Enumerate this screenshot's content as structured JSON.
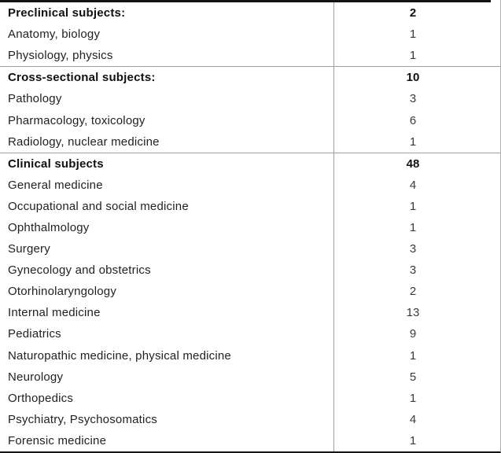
{
  "table": {
    "description": "Distribution of subjects table",
    "column_semantics": [
      "subject",
      "count"
    ],
    "sections": [
      {
        "header": {
          "label": "Preclinical subjects:",
          "count": "2"
        },
        "rows": [
          {
            "subject": "Anatomy, biology",
            "count": "1"
          },
          {
            "subject": "Physiology, physics",
            "count": "1"
          }
        ]
      },
      {
        "header": {
          "label": "Cross-sectional subjects:",
          "count": "10"
        },
        "rows": [
          {
            "subject": "Pathology",
            "count": "3"
          },
          {
            "subject": "Pharmacology, toxicology",
            "count": "6"
          },
          {
            "subject": "Radiology, nuclear medicine",
            "count": "1"
          }
        ]
      },
      {
        "header": {
          "label": "Clinical subjects",
          "count": "48"
        },
        "rows": [
          {
            "subject": "General medicine",
            "count": "4"
          },
          {
            "subject": "Occupational and social medicine",
            "count": "1"
          },
          {
            "subject": "Ophthalmology",
            "count": "1"
          },
          {
            "subject": "Surgery",
            "count": "3"
          },
          {
            "subject": "Gynecology and obstetrics",
            "count": "3"
          },
          {
            "subject": "Otorhinolaryngology",
            "count": "2"
          },
          {
            "subject": "Internal medicine",
            "count": "13"
          },
          {
            "subject": "Pediatrics",
            "count": "9"
          },
          {
            "subject": "Naturopathic medicine, physical medicine",
            "count": "1"
          },
          {
            "subject": "Neurology",
            "count": "5"
          },
          {
            "subject": "Orthopedics",
            "count": "1"
          },
          {
            "subject": "Psychiatry, Psychosomatics",
            "count": "4"
          },
          {
            "subject": "Forensic medicine",
            "count": "1"
          }
        ]
      }
    ],
    "colors": {
      "border_strong": "#141414",
      "border_light": "#9e9e9e",
      "border_faint": "#b0b0b0",
      "text": "#222222",
      "background": "#ffffff"
    }
  }
}
